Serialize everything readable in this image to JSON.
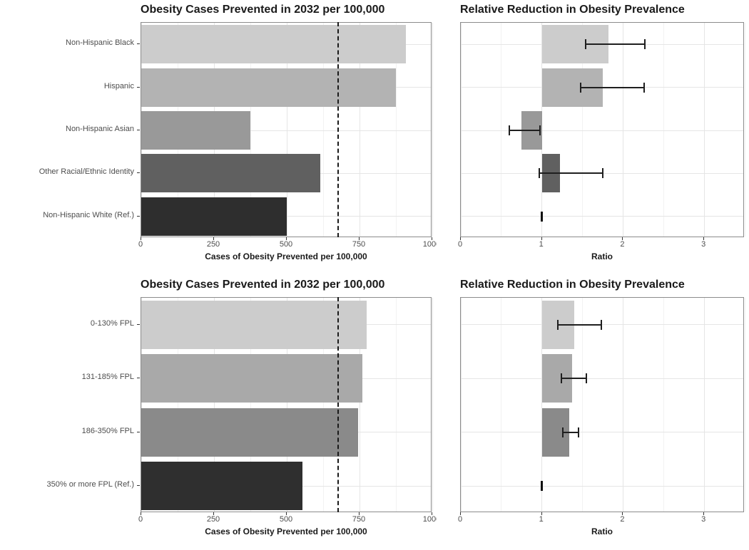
{
  "figure": {
    "background": "#ffffff",
    "layout": "2x2 grid; left column = prevented-cases bar charts, right column = ratio charts with 95% CI error bars; grid on; no legend"
  },
  "colors": {
    "panel_border": "#8c8c8c",
    "grid_major": "#e5e5e5",
    "grid_minor": "#f2f2f2",
    "axis_text": "#4d4d4d",
    "title_text": "#1a1a1a",
    "errorbar": "#1f1f1f",
    "dashed_line": "#1a1a1a",
    "race_palette": [
      "#cccccc",
      "#b3b3b3",
      "#999999",
      "#606060",
      "#2e2e2e"
    ],
    "fpl_palette": [
      "#cccccc",
      "#a9a9a9",
      "#8a8a8a",
      "#2f2f2f"
    ]
  },
  "chart_data": [
    {
      "id": "race-cases",
      "type": "bar",
      "side": "left",
      "title": "Obesity Cases Prevented in 2032 per 100,000",
      "xlabel": "Cases of Obesity Prevented per 100,000",
      "categories": [
        "Non-Hispanic Black",
        "Hispanic",
        "Non-Hispanic Asian",
        "Other Racial/Ethnic Identity",
        "Non-Hispanic White (Ref.)"
      ],
      "values": [
        910,
        875,
        375,
        615,
        500
      ],
      "bar_colors": [
        "#cccccc",
        "#b3b3b3",
        "#999999",
        "#606060",
        "#2e2e2e"
      ],
      "xlim": [
        0,
        1000
      ],
      "xticks": [
        0,
        250,
        500,
        750,
        1000
      ],
      "xtick_labels": [
        "0",
        "250",
        "500",
        "750",
        "1000"
      ],
      "xticks_minor": [
        125,
        375,
        625,
        875
      ],
      "dashed_vline": 677
    },
    {
      "id": "race-ratio",
      "type": "bar",
      "side": "right",
      "title": "Relative Reduction in Obesity Prevalence",
      "xlabel": "Ratio",
      "categories": [
        "Non-Hispanic Black",
        "Hispanic",
        "Non-Hispanic Asian",
        "Other Racial/Ethnic Identity",
        "Non-Hispanic White (Ref.)"
      ],
      "baseline": 1,
      "values": [
        1.82,
        1.75,
        0.75,
        1.22,
        1.0
      ],
      "ci_low": [
        1.54,
        1.48,
        0.6,
        0.97,
        null
      ],
      "ci_high": [
        2.27,
        2.26,
        0.98,
        1.75,
        null
      ],
      "is_reference": [
        false,
        false,
        false,
        false,
        true
      ],
      "bar_colors": [
        "#cccccc",
        "#b3b3b3",
        "#999999",
        "#606060",
        "#2e2e2e"
      ],
      "xlim": [
        0,
        3.5
      ],
      "xticks": [
        0,
        1,
        2,
        3
      ],
      "xtick_labels": [
        "0",
        "1",
        "2",
        "3"
      ],
      "xticks_minor": [
        0.5,
        1.5,
        2.5,
        3.5
      ]
    },
    {
      "id": "fpl-cases",
      "type": "bar",
      "side": "left",
      "title": "Obesity Cases Prevented in 2032 per 100,000",
      "xlabel": "Cases of Obesity Prevented per 100,000",
      "categories": [
        "0-130% FPL",
        "131-185% FPL",
        "186-350% FPL",
        "350% or more FPL (Ref.)"
      ],
      "values": [
        775,
        760,
        745,
        555
      ],
      "bar_colors": [
        "#cccccc",
        "#a9a9a9",
        "#8a8a8a",
        "#2f2f2f"
      ],
      "xlim": [
        0,
        1000
      ],
      "xticks": [
        0,
        250,
        500,
        750,
        1000
      ],
      "xtick_labels": [
        "0",
        "250",
        "500",
        "750",
        "1000"
      ],
      "xticks_minor": [
        125,
        375,
        625,
        875
      ],
      "dashed_vline": 677
    },
    {
      "id": "fpl-ratio",
      "type": "bar",
      "side": "right",
      "title": "Relative Reduction in Obesity Prevalence",
      "xlabel": "Ratio",
      "categories": [
        "0-130% FPL",
        "131-185% FPL",
        "186-350% FPL",
        "350% or more FPL (Ref.)"
      ],
      "baseline": 1,
      "values": [
        1.4,
        1.37,
        1.34,
        1.0
      ],
      "ci_low": [
        1.2,
        1.24,
        1.26,
        null
      ],
      "ci_high": [
        1.73,
        1.55,
        1.45,
        null
      ],
      "is_reference": [
        false,
        false,
        false,
        true
      ],
      "bar_colors": [
        "#cccccc",
        "#a9a9a9",
        "#8a8a8a",
        "#2f2f2f"
      ],
      "xlim": [
        0,
        3.5
      ],
      "xticks": [
        0,
        1,
        2,
        3
      ],
      "xtick_labels": [
        "0",
        "1",
        "2",
        "3"
      ],
      "xticks_minor": [
        0.5,
        1.5,
        2.5,
        3.5
      ]
    }
  ]
}
